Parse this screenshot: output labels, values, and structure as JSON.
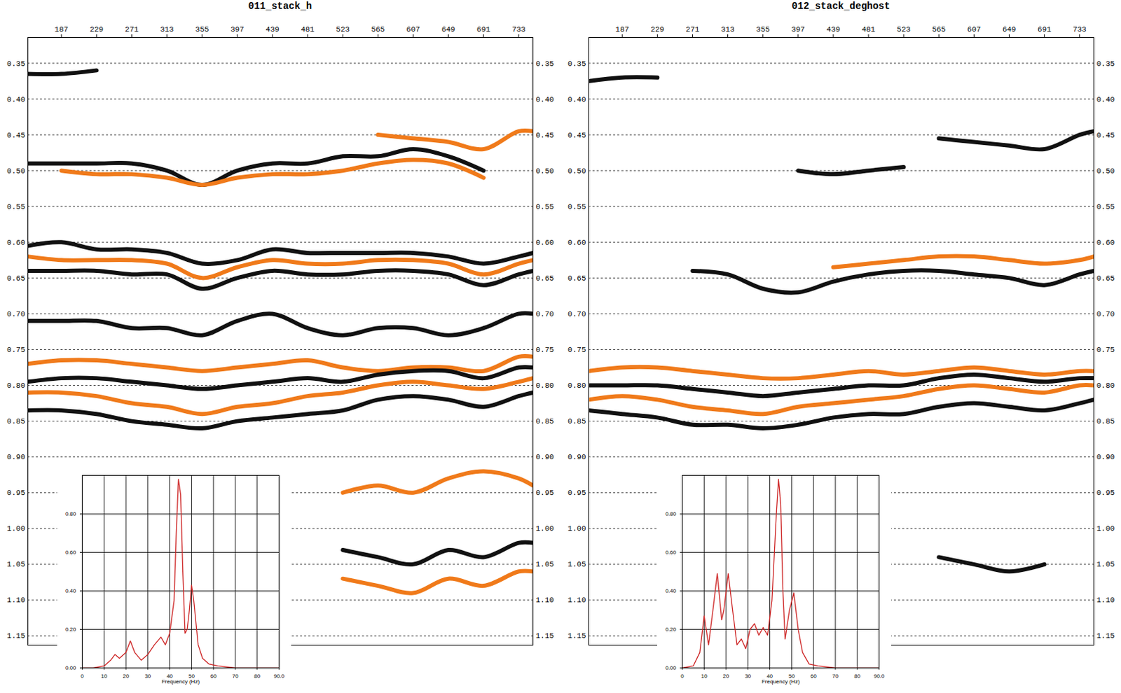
{
  "chart_data": [
    {
      "type": "line",
      "title": "011_stack_h",
      "x": [
        147,
        187,
        229,
        271,
        313,
        355,
        397,
        439,
        481,
        523,
        565,
        607,
        649,
        691,
        733,
        750
      ],
      "series": [
        {
          "color": "#111111",
          "values": [
            0.365,
            0.365,
            0.36,
            null,
            null,
            null,
            null,
            null,
            null,
            null,
            null,
            null,
            null,
            null,
            null,
            null
          ]
        },
        {
          "color": "#f07a1a",
          "values": [
            null,
            null,
            null,
            null,
            null,
            null,
            null,
            null,
            null,
            null,
            0.45,
            0.455,
            0.46,
            0.47,
            0.445,
            0.445
          ]
        },
        {
          "color": "#111111",
          "values": [
            0.49,
            0.49,
            0.49,
            0.49,
            0.5,
            0.52,
            0.5,
            0.49,
            0.49,
            0.48,
            0.48,
            0.47,
            0.48,
            0.5,
            null,
            null
          ]
        },
        {
          "color": "#f07a1a",
          "values": [
            null,
            0.5,
            0.505,
            0.505,
            0.51,
            0.52,
            0.51,
            0.505,
            0.505,
            0.5,
            0.49,
            0.485,
            0.49,
            0.51,
            null,
            null
          ]
        },
        {
          "color": "#111111",
          "values": [
            0.605,
            0.6,
            0.61,
            0.61,
            0.615,
            0.63,
            0.625,
            0.61,
            0.615,
            0.615,
            0.615,
            0.615,
            0.62,
            0.63,
            0.62,
            0.615
          ]
        },
        {
          "color": "#f07a1a",
          "values": [
            0.62,
            0.625,
            0.625,
            0.625,
            0.63,
            0.65,
            0.635,
            0.625,
            0.63,
            0.63,
            0.625,
            0.625,
            0.63,
            0.645,
            0.63,
            0.625
          ]
        },
        {
          "color": "#111111",
          "values": [
            0.64,
            0.64,
            0.64,
            0.645,
            0.645,
            0.665,
            0.65,
            0.64,
            0.645,
            0.645,
            0.64,
            0.64,
            0.645,
            0.66,
            0.645,
            0.64
          ]
        },
        {
          "color": "#111111",
          "values": [
            0.71,
            0.71,
            0.71,
            0.72,
            0.72,
            0.73,
            0.71,
            0.7,
            0.72,
            0.73,
            0.72,
            0.72,
            0.73,
            0.72,
            0.7,
            0.7
          ]
        },
        {
          "color": "#f07a1a",
          "values": [
            0.77,
            0.765,
            0.765,
            0.77,
            0.775,
            0.78,
            0.775,
            0.77,
            0.765,
            0.775,
            0.78,
            0.775,
            0.775,
            0.78,
            0.76,
            0.76
          ]
        },
        {
          "color": "#111111",
          "values": [
            0.795,
            0.79,
            0.79,
            0.795,
            0.8,
            0.805,
            0.8,
            0.795,
            0.79,
            0.795,
            0.785,
            0.78,
            0.78,
            0.79,
            0.775,
            0.775
          ]
        },
        {
          "color": "#f07a1a",
          "values": [
            0.81,
            0.81,
            0.815,
            0.825,
            0.83,
            0.84,
            0.83,
            0.825,
            0.815,
            0.81,
            0.8,
            0.795,
            0.8,
            0.805,
            0.795,
            0.79
          ]
        },
        {
          "color": "#111111",
          "values": [
            0.835,
            0.835,
            0.84,
            0.85,
            0.855,
            0.86,
            0.85,
            0.845,
            0.84,
            0.835,
            0.82,
            0.815,
            0.82,
            0.83,
            0.815,
            0.81
          ]
        },
        {
          "color": "#f07a1a",
          "values": [
            null,
            null,
            null,
            null,
            null,
            null,
            null,
            null,
            null,
            0.95,
            0.94,
            0.95,
            0.93,
            0.92,
            0.93,
            0.94
          ]
        },
        {
          "color": "#111111",
          "values": [
            null,
            null,
            null,
            null,
            null,
            null,
            null,
            null,
            null,
            1.03,
            1.04,
            1.05,
            1.03,
            1.04,
            1.02,
            1.02
          ]
        },
        {
          "color": "#f07a1a",
          "values": [
            null,
            null,
            null,
            null,
            null,
            null,
            null,
            null,
            null,
            1.07,
            1.08,
            1.09,
            1.07,
            1.08,
            1.06,
            1.06
          ]
        }
      ],
      "xlim": [
        147,
        750
      ],
      "xticks": [
        187,
        229,
        271,
        313,
        355,
        397,
        439,
        481,
        523,
        565,
        607,
        649,
        691,
        733
      ],
      "ylim": [
        1.163,
        0.314
      ],
      "yticks": [
        0.35,
        {
          "value": 0.4,
          "label": "0.40"
        },
        0.45,
        {
          "value": 0.5,
          "label": "0.50"
        },
        0.55,
        {
          "value": 0.6,
          "label": "0.60"
        },
        0.65,
        {
          "value": 0.7,
          "label": "0.70"
        },
        0.75,
        {
          "value": 0.8,
          "label": "0.80"
        },
        0.85,
        {
          "value": 0.9,
          "label": "0.90"
        },
        0.95,
        {
          "value": 1,
          "label": "1.00"
        },
        1.05,
        {
          "value": 1.1,
          "label": "1.10"
        },
        1.15
      ],
      "grid": true
    },
    {
      "type": "line",
      "title": "012_stack_deghost",
      "x": [
        147,
        187,
        229,
        271,
        313,
        355,
        397,
        439,
        481,
        523,
        565,
        607,
        649,
        691,
        733,
        750
      ],
      "series": [
        {
          "color": "#111111",
          "values": [
            0.375,
            0.37,
            0.37,
            null,
            null,
            null,
            null,
            null,
            null,
            null,
            null,
            null,
            null,
            null,
            null,
            null
          ]
        },
        {
          "color": "#111111",
          "values": [
            null,
            null,
            null,
            null,
            null,
            null,
            0.5,
            0.505,
            0.5,
            0.495,
            null,
            null,
            null,
            null,
            null,
            null
          ]
        },
        {
          "color": "#111111",
          "values": [
            null,
            null,
            null,
            null,
            null,
            null,
            null,
            null,
            null,
            null,
            0.455,
            0.46,
            0.465,
            0.47,
            0.45,
            0.445
          ]
        },
        {
          "color": "#f07a1a",
          "values": [
            null,
            null,
            null,
            null,
            null,
            null,
            null,
            0.635,
            0.63,
            0.625,
            0.62,
            0.62,
            0.625,
            0.63,
            0.625,
            0.62
          ]
        },
        {
          "color": "#111111",
          "values": [
            null,
            null,
            null,
            0.64,
            0.645,
            0.665,
            0.67,
            0.655,
            0.645,
            0.64,
            0.64,
            0.645,
            0.65,
            0.66,
            0.645,
            0.64
          ]
        },
        {
          "color": "#f07a1a",
          "values": [
            0.78,
            0.775,
            0.775,
            0.78,
            0.785,
            0.79,
            0.79,
            0.785,
            0.78,
            0.785,
            0.78,
            0.775,
            0.78,
            0.785,
            0.78,
            0.78
          ]
        },
        {
          "color": "#111111",
          "values": [
            0.8,
            0.8,
            0.8,
            0.805,
            0.81,
            0.815,
            0.81,
            0.805,
            0.8,
            0.8,
            0.79,
            0.785,
            0.79,
            0.795,
            0.79,
            0.79
          ]
        },
        {
          "color": "#f07a1a",
          "values": [
            0.82,
            0.815,
            0.82,
            0.83,
            0.835,
            0.84,
            0.83,
            0.825,
            0.82,
            0.815,
            0.805,
            0.8,
            0.805,
            0.81,
            0.8,
            0.8
          ]
        },
        {
          "color": "#111111",
          "values": [
            0.835,
            0.84,
            0.845,
            0.855,
            0.855,
            0.86,
            0.855,
            0.845,
            0.84,
            0.84,
            0.83,
            0.825,
            0.83,
            0.835,
            0.825,
            0.82
          ]
        },
        {
          "color": "#111111",
          "values": [
            null,
            null,
            null,
            null,
            null,
            null,
            null,
            null,
            null,
            null,
            1.04,
            1.05,
            1.06,
            1.05,
            null,
            null
          ]
        }
      ],
      "xlim": [
        147,
        750
      ],
      "xticks": [
        187,
        229,
        271,
        313,
        355,
        397,
        439,
        481,
        523,
        565,
        607,
        649,
        691,
        733
      ],
      "ylim": [
        1.163,
        0.314
      ],
      "yticks": [
        0.35,
        {
          "value": 0.4,
          "label": "0.40"
        },
        0.45,
        {
          "value": 0.5,
          "label": "0.50"
        },
        0.55,
        {
          "value": 0.6,
          "label": "0.60"
        },
        0.65,
        {
          "value": 0.7,
          "label": "0.70"
        },
        0.75,
        {
          "value": 0.8,
          "label": "0.80"
        },
        0.85,
        {
          "value": 0.9,
          "label": "0.90"
        },
        0.95,
        {
          "value": 1,
          "label": "1.00"
        },
        1.05,
        {
          "value": 1.1,
          "label": "1.10"
        },
        1.15
      ],
      "grid": true
    },
    {
      "type": "line",
      "xlabel": "Frequency (Hz)",
      "color": "#cc2020",
      "x": [
        0,
        5,
        10,
        13,
        15,
        17,
        20,
        22,
        24,
        27,
        30,
        33,
        36,
        38,
        40,
        42,
        43,
        44,
        45,
        46,
        47,
        48,
        49,
        50,
        51,
        53,
        55,
        58,
        62,
        70,
        80,
        90
      ],
      "values": [
        0,
        0,
        0.01,
        0.04,
        0.07,
        0.05,
        0.08,
        0.14,
        0.08,
        0.04,
        0.07,
        0.12,
        0.16,
        0.12,
        0.18,
        0.35,
        0.7,
        0.98,
        0.9,
        0.5,
        0.18,
        0.2,
        0.3,
        0.43,
        0.35,
        0.12,
        0.05,
        0.02,
        0.01,
        0,
        0,
        0
      ],
      "xlim": [
        0,
        90
      ],
      "xticks": [
        0,
        10,
        20,
        30,
        40,
        50,
        60,
        70,
        80,
        {
          "value": 90,
          "label": "90.0"
        }
      ],
      "ylim": [
        0,
        1.0
      ],
      "yticks": [
        {
          "value": 0,
          "label": "0.00"
        },
        {
          "value": 0.2,
          "label": "0.20"
        },
        {
          "value": 0.4,
          "label": "0.40"
        },
        {
          "value": 0.6,
          "label": "0.60"
        },
        {
          "value": 0.8,
          "label": "0.80"
        }
      ],
      "grid": true
    },
    {
      "type": "line",
      "xlabel": "Frequency (Hz)",
      "color": "#cc2020",
      "x": [
        0,
        5,
        8,
        10,
        12,
        14,
        16,
        18,
        19,
        21,
        23,
        25,
        27,
        29,
        31,
        33,
        35,
        37,
        39,
        41,
        43,
        44,
        45,
        46,
        47,
        49,
        51,
        53,
        55,
        58,
        62,
        70,
        80,
        90
      ],
      "values": [
        0,
        0.01,
        0.08,
        0.27,
        0.12,
        0.3,
        0.49,
        0.25,
        0.3,
        0.49,
        0.3,
        0.12,
        0.15,
        0.1,
        0.2,
        0.23,
        0.17,
        0.21,
        0.17,
        0.35,
        0.8,
        0.98,
        0.85,
        0.4,
        0.15,
        0.3,
        0.39,
        0.2,
        0.08,
        0.02,
        0.01,
        0,
        0,
        0
      ],
      "xlim": [
        0,
        90
      ],
      "xticks": [
        0,
        10,
        20,
        30,
        40,
        50,
        60,
        70,
        80,
        {
          "value": 90,
          "label": "90.0"
        }
      ],
      "ylim": [
        0,
        1.0
      ],
      "yticks": [
        {
          "value": 0,
          "label": "0.00"
        },
        {
          "value": 0.2,
          "label": "0.20"
        },
        {
          "value": 0.4,
          "label": "0.40"
        },
        {
          "value": 0.6,
          "label": "0.60"
        },
        {
          "value": 0.8,
          "label": "0.80"
        }
      ],
      "grid": true
    }
  ]
}
